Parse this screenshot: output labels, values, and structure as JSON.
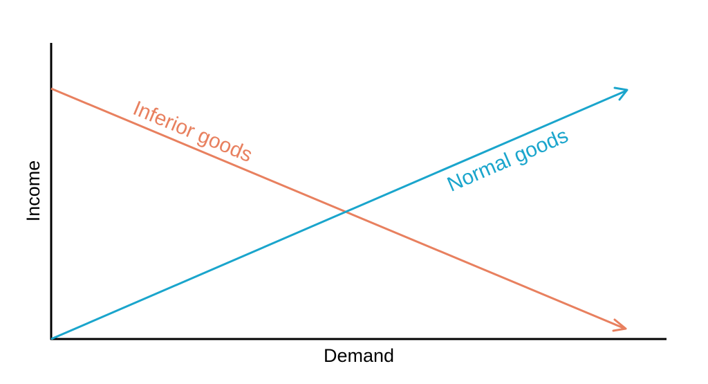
{
  "axes": {
    "x_label": "Demand",
    "y_label": "Income"
  },
  "lines": [
    {
      "label": "Inferior goods",
      "color": "#e8805f"
    },
    {
      "label": "Normal goods",
      "color": "#1aa5cc"
    }
  ]
}
